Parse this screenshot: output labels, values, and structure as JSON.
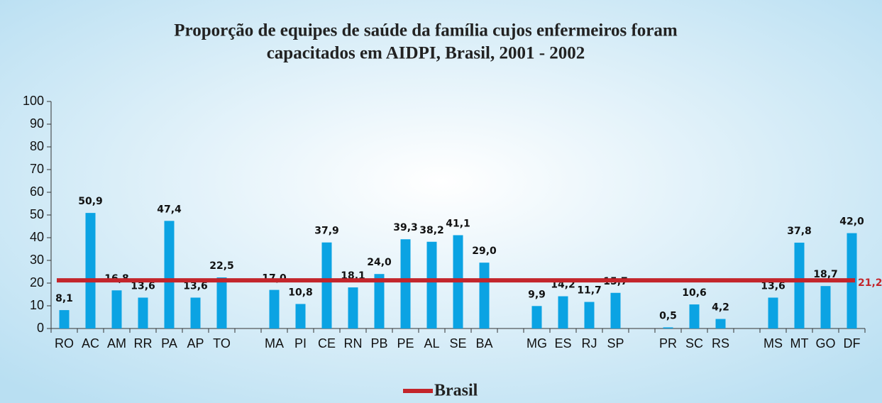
{
  "chart_data": {
    "type": "bar",
    "title_lines": [
      "Proporção de equipes de saúde da família cujos enfermeiros foram",
      "capacitados em AIDPI, Brasil, 2001 - 2002"
    ],
    "categories": [
      "RO",
      "AC",
      "AM",
      "RR",
      "PA",
      "AP",
      "TO",
      null,
      "MA",
      "PI",
      "CE",
      "RN",
      "PB",
      "PE",
      "AL",
      "SE",
      "BA",
      null,
      "MG",
      "ES",
      "RJ",
      "SP",
      null,
      "PR",
      "SC",
      "RS",
      null,
      "MS",
      "MT",
      "GO",
      "DF"
    ],
    "values": [
      8.1,
      50.9,
      16.8,
      13.6,
      47.4,
      13.6,
      22.5,
      null,
      17.0,
      10.8,
      37.9,
      18.1,
      24.0,
      39.3,
      38.2,
      41.1,
      29.0,
      null,
      9.9,
      14.2,
      11.7,
      15.7,
      null,
      0.5,
      10.6,
      4.2,
      null,
      13.6,
      37.8,
      18.7,
      42.0
    ],
    "value_labels": [
      "8,1",
      "50,9",
      "16,8",
      "13,6",
      "47,4",
      "13,6",
      "22,5",
      null,
      "17,0",
      "10,8",
      "37,9",
      "18,1",
      "24,0",
      "39,3",
      "38,2",
      "41,1",
      "29,0",
      null,
      "9,9",
      "14,2",
      "11,7",
      "15,7",
      null,
      "0,5",
      "10,6",
      "4,2",
      null,
      "13,6",
      "37,8",
      "18,7",
      "42,0"
    ],
    "color": "#0ba3e3",
    "ylim": [
      0,
      100
    ],
    "yticks": [
      0,
      10,
      20,
      30,
      40,
      50,
      60,
      70,
      80,
      90,
      100
    ],
    "reference_line": {
      "name": "Brasil",
      "value": 21.2,
      "value_label": "21,2",
      "color": "#c3252b"
    },
    "grid": false
  }
}
